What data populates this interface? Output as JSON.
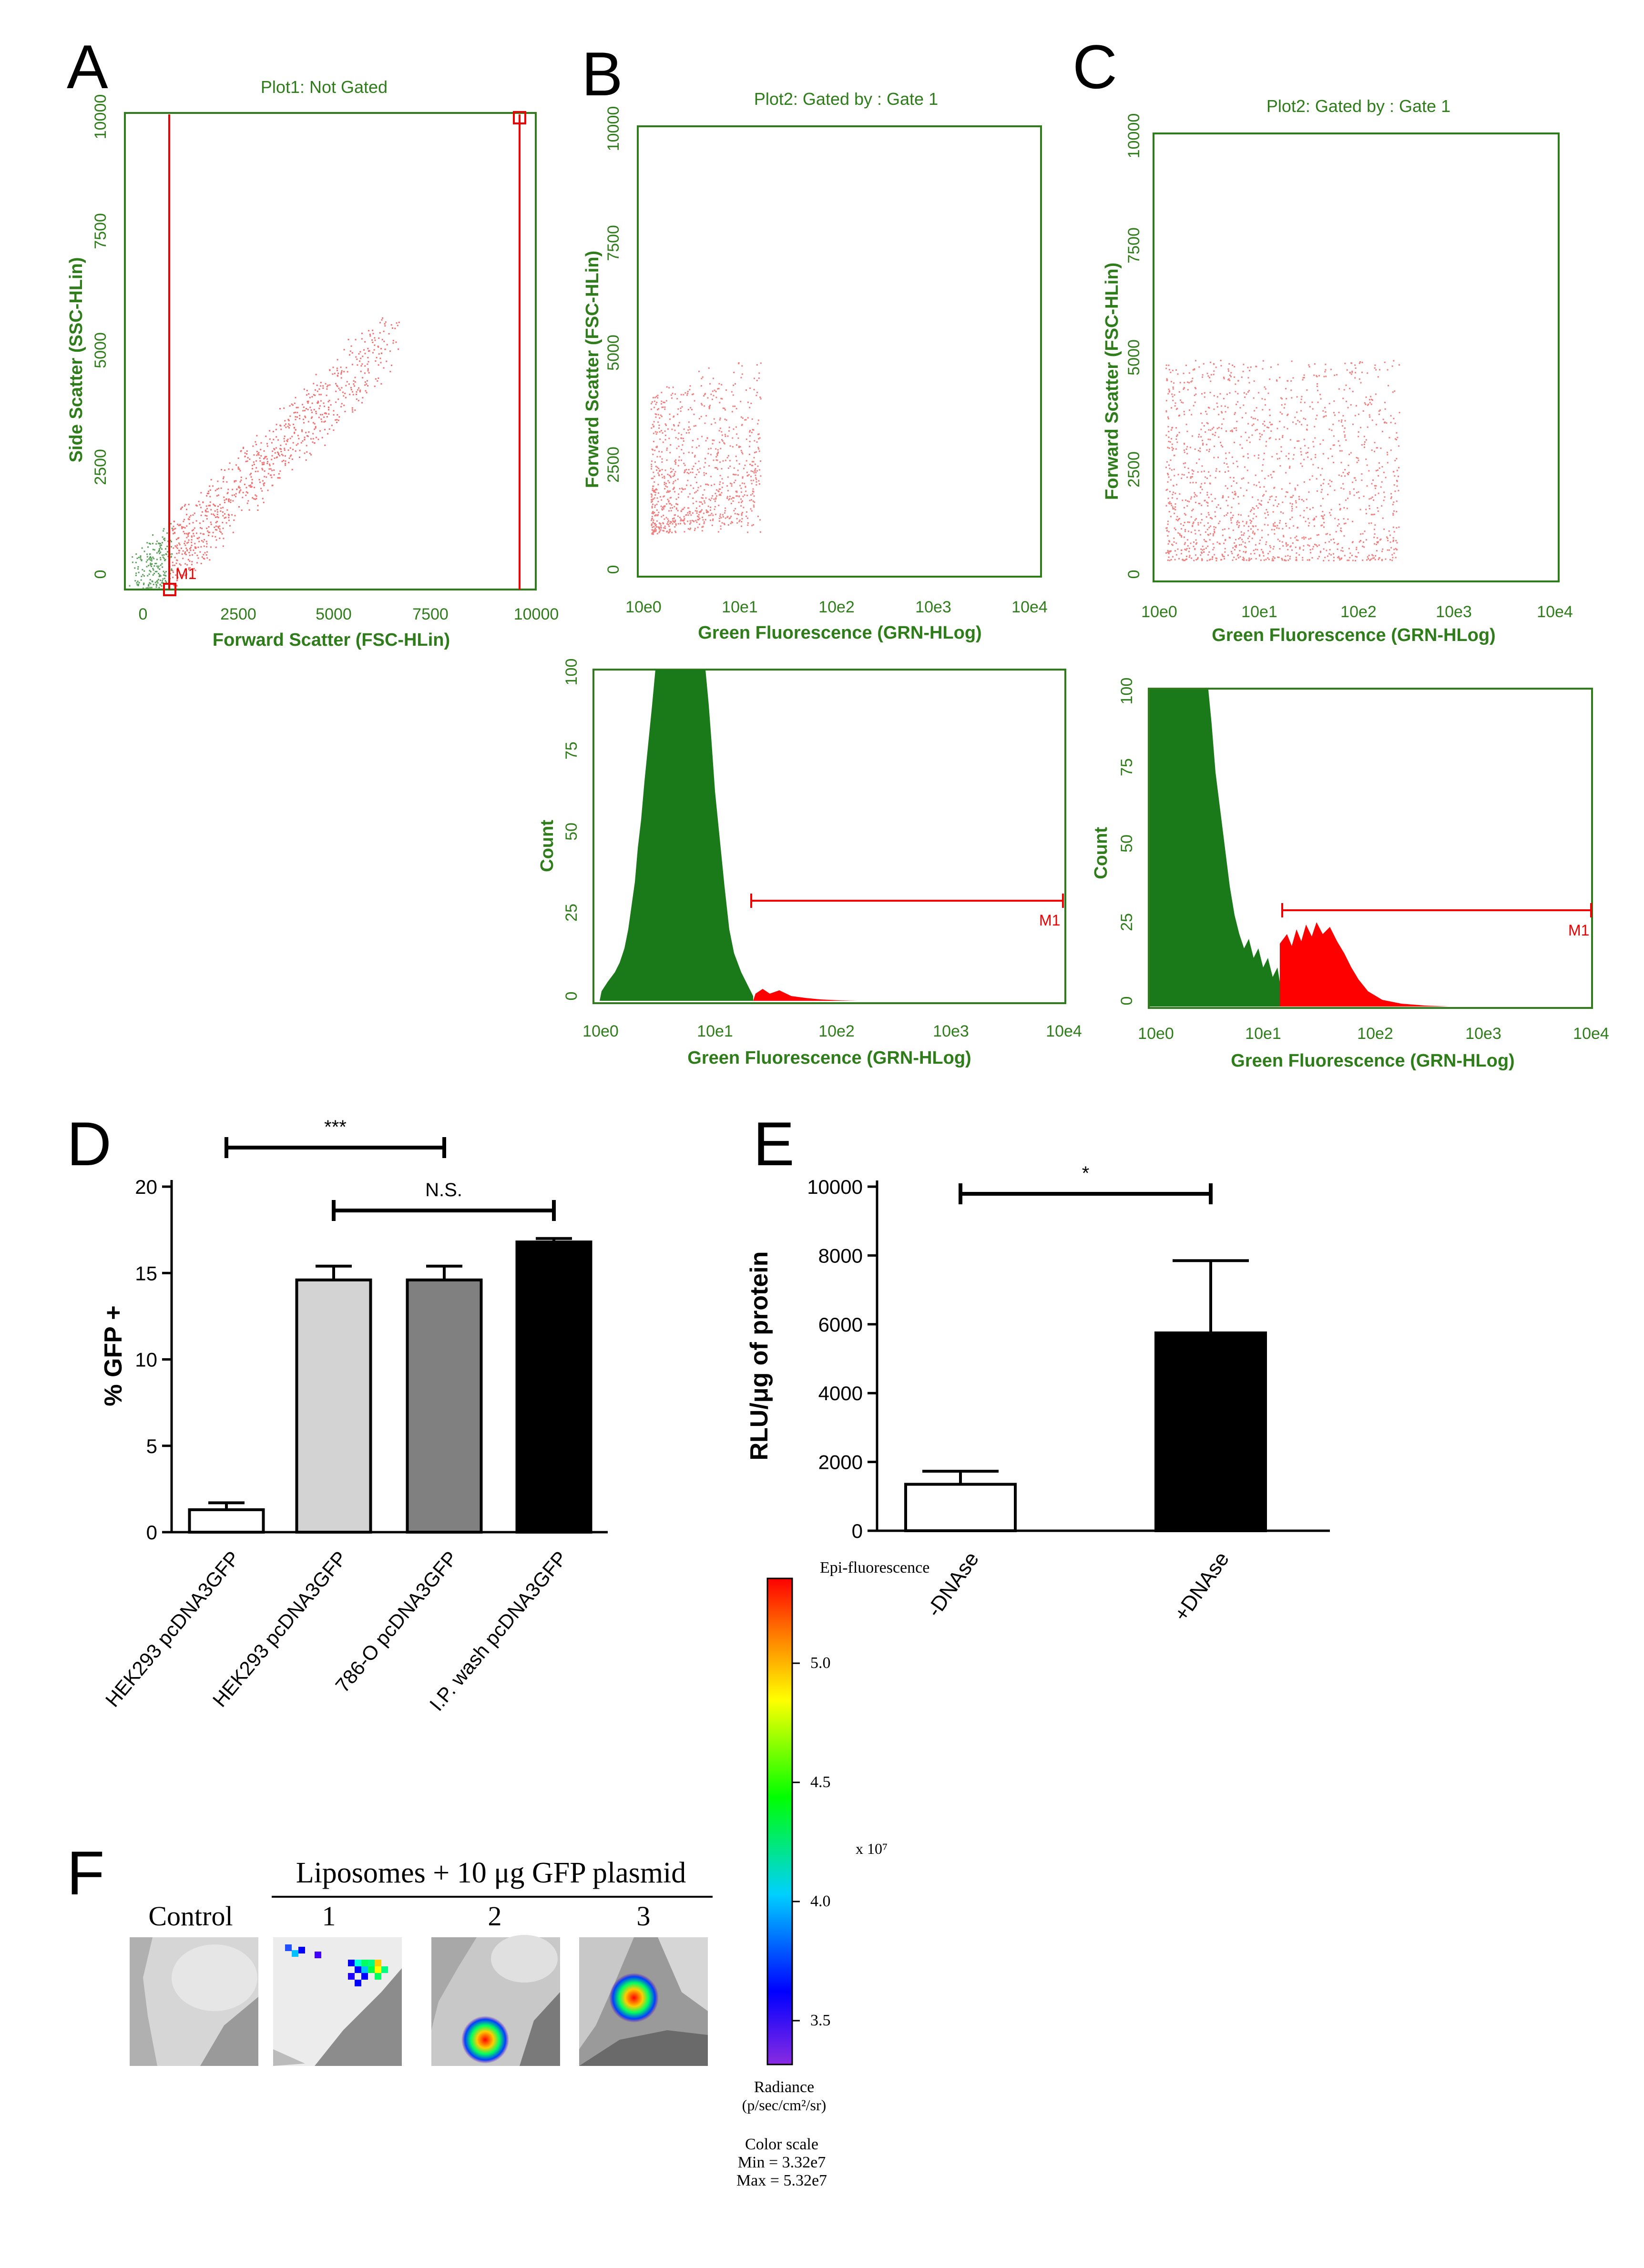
{
  "panels": {
    "A": {
      "letter": "A",
      "title": "Plot1:  Not Gated",
      "xlabel": "Forward Scatter (FSC-HLin)",
      "ylabel": "Side Scatter (SSC-HLin)",
      "xticks": [
        "0",
        "2500",
        "5000",
        "7500",
        "10000"
      ],
      "yticks": [
        "0",
        "2500",
        "5000",
        "7500",
        "10000"
      ],
      "gate_label": "M1"
    },
    "B": {
      "letter": "B",
      "title": "Plot2:  Gated by : Gate 1",
      "xlabel": "Green Fluorescence (GRN-HLog)",
      "ylabel": "Forward Scatter (FSC-HLin)",
      "xticks": [
        "10e0",
        "10e1",
        "10e2",
        "10e3",
        "10e4"
      ],
      "yticks": [
        "0",
        "2500",
        "5000",
        "7500",
        "10000"
      ],
      "hist_xlabel": "Green Fluorescence (GRN-HLog)",
      "hist_ylabel": "Count",
      "hist_yticks": [
        "0",
        "25",
        "50",
        "75",
        "100"
      ],
      "gate_label": "M1"
    },
    "C": {
      "letter": "C",
      "title": "Plot2:  Gated by : Gate 1",
      "xlabel": "Green Fluorescence (GRN-HLog)",
      "ylabel": "Forward Scatter (FSC-HLin)",
      "xticks": [
        "10e0",
        "10e1",
        "10e2",
        "10e3",
        "10e4"
      ],
      "yticks": [
        "0",
        "2500",
        "5000",
        "7500",
        "10000"
      ],
      "hist_xlabel": "Green Fluorescence (GRN-HLog)",
      "hist_ylabel": "Count",
      "hist_yticks": [
        "0",
        "25",
        "50",
        "75",
        "100"
      ],
      "gate_label": "M1"
    },
    "D": {
      "letter": "D"
    },
    "E": {
      "letter": "E"
    },
    "F": {
      "letter": "F",
      "header": "Liposomes + 10 μg GFP plasmid",
      "images": [
        "Control",
        "1",
        "2",
        "3"
      ],
      "colorbar": {
        "title": "Epi-fluorescence",
        "ticks": [
          "5.0",
          "4.5",
          "4.0",
          "3.5"
        ],
        "multiplier": "x 10⁷",
        "units_line1": "Radiance",
        "units_line2": "(p/sec/cm²/sr)",
        "scale_title": "Color scale",
        "min": "Min = 3.32e7",
        "max": "Max = 5.32e7"
      }
    }
  },
  "chart_data": [
    {
      "type": "scatter",
      "panel": "A",
      "title": "Plot1:  Not Gated",
      "xlabel": "Forward Scatter (FSC-HLin)",
      "ylabel": "Side Scatter (SSC-HLin)",
      "xlim": [
        0,
        10000
      ],
      "ylim": [
        0,
        10000
      ],
      "gate": {
        "name": "M1",
        "x_range": [
          600,
          9500
        ]
      }
    },
    {
      "type": "scatter",
      "panel": "B",
      "title": "Plot2:  Gated by : Gate 1",
      "xlabel": "Green Fluorescence (GRN-HLog)",
      "ylabel": "Forward Scatter (FSC-HLin)",
      "xscale": "log",
      "xlim": [
        1,
        10000
      ],
      "ylim": [
        0,
        10000
      ]
    },
    {
      "type": "scatter",
      "panel": "C",
      "title": "Plot2:  Gated by : Gate 1",
      "xlabel": "Green Fluorescence (GRN-HLog)",
      "ylabel": "Forward Scatter (FSC-HLin)",
      "xscale": "log",
      "xlim": [
        1,
        10000
      ],
      "ylim": [
        0,
        10000
      ]
    },
    {
      "type": "area",
      "panel": "B-histogram",
      "xlabel": "Green Fluorescence (GRN-HLog)",
      "ylabel": "Count",
      "xscale": "log",
      "xlim": [
        1,
        10000
      ],
      "ylim": [
        0,
        100
      ],
      "gate": {
        "name": "M1",
        "x_range": [
          20,
          10000
        ]
      }
    },
    {
      "type": "area",
      "panel": "C-histogram",
      "xlabel": "Green Fluorescence (GRN-HLog)",
      "ylabel": "Count",
      "xscale": "log",
      "xlim": [
        1,
        10000
      ],
      "ylim": [
        0,
        100
      ],
      "gate": {
        "name": "M1",
        "x_range": [
          14,
          10000
        ]
      }
    },
    {
      "type": "bar",
      "panel": "D",
      "categories": [
        "HEK293 pcDNA3GFP",
        "HEK293 pcDNA3GFP",
        "786-O pcDNA3GFP",
        "I.P. wash pcDNA3GFP"
      ],
      "values": [
        1.3,
        14.6,
        14.6,
        16.8
      ],
      "errors": [
        0.4,
        0.8,
        0.8,
        0.2
      ],
      "colors": [
        "#ffffff",
        "#d3d3d3",
        "#808080",
        "#000000"
      ],
      "ylabel": "% GFP +",
      "ylim": [
        0,
        20
      ],
      "yticks": [
        "0",
        "5",
        "10",
        "15",
        "20"
      ],
      "annotations": [
        {
          "text": "***",
          "from": 0,
          "to": 2
        },
        {
          "text": "N.S.",
          "from": 1,
          "to": 3
        }
      ]
    },
    {
      "type": "bar",
      "panel": "E",
      "categories": [
        "-DNAse",
        "+DNAse"
      ],
      "values": [
        1350,
        5750
      ],
      "errors": [
        380,
        2100
      ],
      "colors": [
        "#ffffff",
        "#000000"
      ],
      "ylabel": "RLU/μg of protein",
      "ylim": [
        0,
        10000
      ],
      "yticks": [
        "0",
        "2000",
        "4000",
        "6000",
        "8000",
        "10000"
      ],
      "annotations": [
        {
          "text": "*",
          "from": 0,
          "to": 1
        }
      ]
    }
  ]
}
